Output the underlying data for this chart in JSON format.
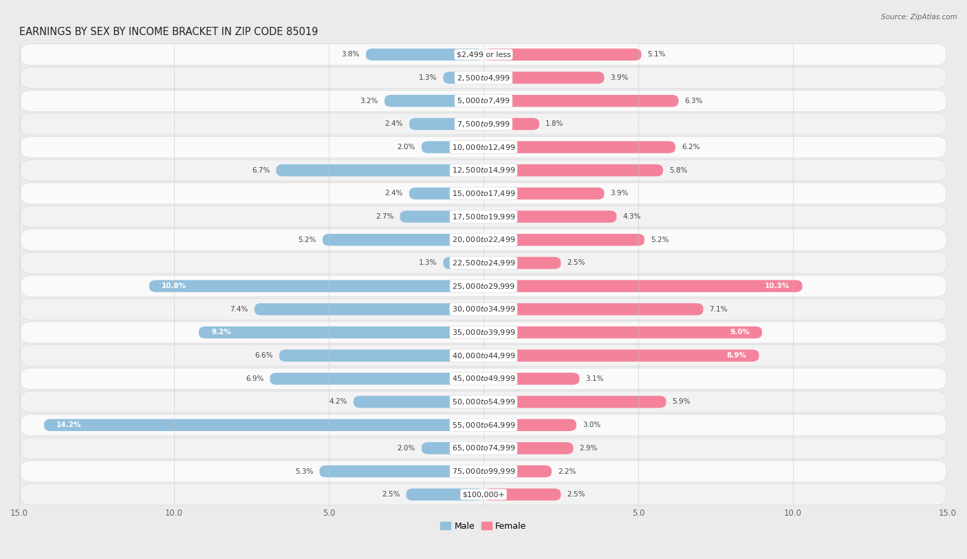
{
  "title": "EARNINGS BY SEX BY INCOME BRACKET IN ZIP CODE 85019",
  "source": "Source: ZipAtlas.com",
  "categories": [
    "$2,499 or less",
    "$2,500 to $4,999",
    "$5,000 to $7,499",
    "$7,500 to $9,999",
    "$10,000 to $12,499",
    "$12,500 to $14,999",
    "$15,000 to $17,499",
    "$17,500 to $19,999",
    "$20,000 to $22,499",
    "$22,500 to $24,999",
    "$25,000 to $29,999",
    "$30,000 to $34,999",
    "$35,000 to $39,999",
    "$40,000 to $44,999",
    "$45,000 to $49,999",
    "$50,000 to $54,999",
    "$55,000 to $64,999",
    "$65,000 to $74,999",
    "$75,000 to $99,999",
    "$100,000+"
  ],
  "male_values": [
    3.8,
    1.3,
    3.2,
    2.4,
    2.0,
    6.7,
    2.4,
    2.7,
    5.2,
    1.3,
    10.8,
    7.4,
    9.2,
    6.6,
    6.9,
    4.2,
    14.2,
    2.0,
    5.3,
    2.5
  ],
  "female_values": [
    5.1,
    3.9,
    6.3,
    1.8,
    6.2,
    5.8,
    3.9,
    4.3,
    5.2,
    2.5,
    10.3,
    7.1,
    9.0,
    8.9,
    3.1,
    5.9,
    3.0,
    2.9,
    2.2,
    2.5
  ],
  "male_color": "#92C0DC",
  "female_color": "#F4829B",
  "male_label": "Male",
  "female_label": "Female",
  "bg_row_even": "#F2F2F2",
  "bg_row_odd": "#FAFAFA",
  "bg_main": "#EBEBEB",
  "xlim": 15.0,
  "title_fontsize": 10.5,
  "label_fontsize": 8.0,
  "pct_fontsize": 7.5,
  "source_fontsize": 7.5
}
